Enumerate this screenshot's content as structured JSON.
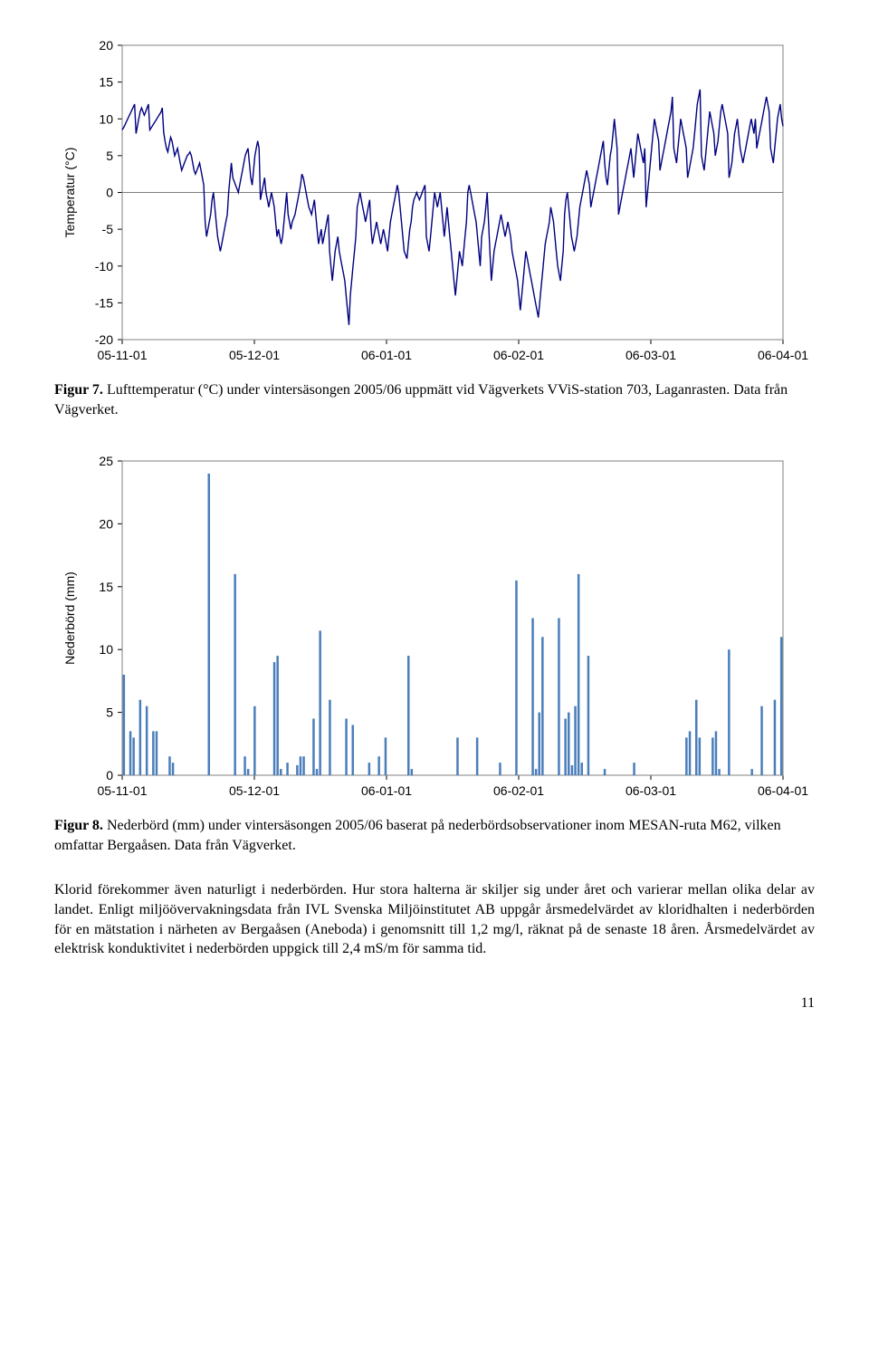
{
  "chart1": {
    "type": "line",
    "ylabel": "Temperatur (°C)",
    "label_fontsize": 14,
    "tick_fontsize": 14,
    "ylim": [
      -20,
      20
    ],
    "ytick_step": 5,
    "xticks": [
      "05-11-01",
      "05-12-01",
      "06-01-01",
      "06-02-01",
      "06-03-01",
      "06-04-01"
    ],
    "series_color": "#000080",
    "zero_line_color": "#808080",
    "frame_color": "#808080",
    "background_color": "#ffffff",
    "line_width": 1.4,
    "data": [
      8.5,
      8.8,
      9.2,
      9.6,
      10.0,
      10.4,
      10.8,
      11.2,
      11.6,
      12.0,
      8.0,
      9.0,
      10.0,
      11.0,
      11.5,
      11.0,
      10.5,
      11.0,
      11.5,
      12.0,
      8.5,
      8.8,
      9.1,
      9.4,
      9.7,
      10.0,
      10.3,
      10.6,
      10.9,
      11.5,
      8.2,
      7.0,
      6.0,
      5.5,
      6.5,
      7.5,
      7.0,
      6.0,
      5.0,
      5.5,
      6.0,
      5.0,
      4.0,
      3.0,
      3.5,
      4.0,
      4.5,
      5.0,
      5.2,
      5.5,
      5.0,
      4.0,
      3.0,
      2.5,
      3.0,
      3.5,
      4.0,
      3.0,
      2.0,
      1.0,
      -4.0,
      -6.0,
      -5.0,
      -4.0,
      -3.0,
      -1.0,
      0.0,
      -2.0,
      -4.0,
      -6.0,
      -7.0,
      -8.0,
      -7.0,
      -6.0,
      -5.0,
      -4.0,
      -3.0,
      0.0,
      2.0,
      4.0,
      2.0,
      1.5,
      1.0,
      0.5,
      0.0,
      1.0,
      2.0,
      3.0,
      4.0,
      5.0,
      5.5,
      6.0,
      4.0,
      2.0,
      1.0,
      3.0,
      5.0,
      6.0,
      7.0,
      6.0,
      -1.0,
      0.0,
      1.0,
      2.0,
      0.0,
      -1.0,
      -2.0,
      -1.0,
      0.0,
      -1.0,
      -2.0,
      -4.0,
      -6.0,
      -5.0,
      -6.0,
      -7.0,
      -6.0,
      -4.0,
      -2.0,
      0.0,
      -3.0,
      -4.0,
      -5.0,
      -4.0,
      -3.5,
      -3.0,
      -2.0,
      -1.0,
      0.0,
      1.0,
      2.5,
      2.0,
      1.0,
      0.0,
      -1.0,
      -2.0,
      -2.5,
      -3.0,
      -2.0,
      -1.0,
      -3.0,
      -5.0,
      -7.0,
      -6.0,
      -5.0,
      -7.0,
      -6.0,
      -5.0,
      -4.0,
      -3.0,
      -8.0,
      -10.0,
      -12.0,
      -10.0,
      -8.0,
      -7.0,
      -6.0,
      -8.0,
      -9.0,
      -10.0,
      -11.0,
      -12.0,
      -14.0,
      -16.0,
      -18.0,
      -14.0,
      -12.0,
      -10.0,
      -8.0,
      -6.0,
      -2.0,
      -1.0,
      0.0,
      -1.0,
      -2.0,
      -3.0,
      -4.0,
      -3.0,
      -2.0,
      -1.0,
      -5.0,
      -7.0,
      -6.0,
      -5.0,
      -4.0,
      -5.0,
      -6.0,
      -7.0,
      -6.0,
      -5.0,
      -6.0,
      -7.0,
      -8.0,
      -6.0,
      -4.0,
      -3.0,
      -2.0,
      -1.0,
      0.0,
      1.0,
      0.0,
      -2.0,
      -4.0,
      -6.0,
      -8.0,
      -8.5,
      -9.0,
      -7.0,
      -5.0,
      -4.0,
      -2.0,
      -1.0,
      -0.5,
      0.0,
      -0.5,
      -1.0,
      -0.5,
      0.0,
      0.5,
      1.0,
      -6.0,
      -7.0,
      -8.0,
      -6.0,
      -4.0,
      -2.0,
      0.0,
      -1.0,
      -2.0,
      -1.0,
      0.0,
      -2.0,
      -4.0,
      -6.0,
      -4.0,
      -2.0,
      -4.0,
      -6.0,
      -8.0,
      -10.0,
      -12.0,
      -14.0,
      -12.0,
      -10.0,
      -8.0,
      -9.0,
      -10.0,
      -8.0,
      -6.0,
      -4.0,
      0.0,
      1.0,
      0.0,
      -1.0,
      -2.0,
      -3.0,
      -4.0,
      -6.0,
      -8.0,
      -10.0,
      -6.0,
      -5.0,
      -4.0,
      -2.0,
      0.0,
      -4.0,
      -8.0,
      -12.0,
      -10.0,
      -8.0,
      -7.0,
      -6.0,
      -5.0,
      -4.0,
      -3.0,
      -4.0,
      -5.0,
      -6.0,
      -5.0,
      -4.0,
      -5.0,
      -6.0,
      -8.0,
      -9.0,
      -10.0,
      -11.0,
      -12.0,
      -14.0,
      -16.0,
      -14.0,
      -12.0,
      -10.0,
      -8.0,
      -9.0,
      -10.0,
      -11.0,
      -12.0,
      -13.0,
      -14.0,
      -15.0,
      -16.0,
      -17.0,
      -15.0,
      -13.0,
      -11.0,
      -9.0,
      -7.0,
      -6.0,
      -5.0,
      -4.0,
      -2.0,
      -3.0,
      -4.0,
      -6.0,
      -8.0,
      -10.0,
      -11.0,
      -12.0,
      -10.0,
      -8.0,
      -3.0,
      -1.0,
      0.0,
      -2.0,
      -4.0,
      -6.0,
      -7.0,
      -8.0,
      -7.0,
      -6.0,
      -4.0,
      -2.0,
      -1.0,
      0.0,
      1.0,
      2.0,
      3.0,
      2.0,
      1.0,
      -2.0,
      -1.0,
      0.0,
      1.0,
      2.0,
      3.0,
      4.0,
      5.0,
      6.0,
      7.0,
      4.0,
      2.0,
      1.0,
      3.0,
      5.0,
      6.0,
      8.0,
      10.0,
      8.0,
      6.0,
      -3.0,
      -2.0,
      -1.0,
      0.0,
      1.0,
      2.0,
      3.0,
      4.0,
      5.0,
      6.0,
      4.0,
      2.0,
      4.0,
      6.0,
      8.0,
      7.0,
      6.0,
      5.0,
      4.0,
      6.0,
      -2.0,
      0.0,
      2.0,
      4.0,
      6.0,
      8.0,
      10.0,
      9.0,
      8.0,
      7.0,
      3.0,
      4.0,
      5.0,
      6.0,
      7.0,
      8.0,
      9.0,
      10.0,
      11.0,
      13.0,
      6.0,
      5.0,
      4.0,
      6.0,
      8.0,
      10.0,
      9.0,
      8.0,
      7.0,
      6.0,
      2.0,
      3.0,
      4.0,
      5.0,
      6.0,
      8.0,
      10.0,
      12.0,
      13.0,
      14.0,
      5.0,
      4.0,
      3.0,
      5.0,
      7.0,
      9.0,
      11.0,
      10.0,
      9.0,
      8.0,
      5.0,
      6.0,
      7.0,
      9.0,
      11.0,
      12.0,
      11.0,
      10.0,
      9.0,
      8.0,
      2.0,
      3.0,
      4.0,
      6.0,
      8.0,
      9.0,
      10.0,
      8.0,
      6.0,
      5.0,
      4.0,
      5.0,
      6.0,
      7.0,
      8.0,
      9.0,
      10.0,
      9.0,
      8.0,
      10.0,
      6.0,
      7.0,
      8.0,
      9.0,
      10.0,
      11.0,
      12.0,
      13.0,
      12.0,
      11.0,
      6.0,
      5.0,
      4.0,
      6.0,
      8.0,
      10.0,
      11.0,
      12.0,
      10.0,
      9.0
    ]
  },
  "caption1": {
    "fignum": "Figur 7.",
    "text": " Lufttemperatur (°C) under vintersäsongen 2005/06 uppmätt vid Vägverkets VViS-station 703, Laganrasten. Data från Vägverket."
  },
  "chart2": {
    "type": "bar",
    "ylabel": "Nederbörd (mm)",
    "label_fontsize": 14,
    "tick_fontsize": 14,
    "ylim": [
      0,
      25
    ],
    "ytick_step": 5,
    "xticks": [
      "05-11-01",
      "05-12-01",
      "06-01-01",
      "06-02-01",
      "06-03-01",
      "06-04-01"
    ],
    "series_color": "#4a7ebb",
    "frame_color": "#808080",
    "background_color": "#ffffff",
    "bar_width": 2.5,
    "data": [
      8,
      0,
      3.5,
      3,
      0,
      6,
      0,
      5.5,
      0,
      3.5,
      3.5,
      0,
      0,
      0,
      1.5,
      1,
      0,
      0,
      0,
      0,
      0,
      0,
      0,
      0,
      0,
      0,
      24,
      0,
      0,
      0,
      0,
      0,
      0,
      0,
      16,
      0,
      0,
      1.5,
      0.5,
      0,
      5.5,
      0,
      0,
      0,
      0,
      0,
      9,
      9.5,
      0.5,
      0,
      1,
      0,
      0,
      0.8,
      1.5,
      1.5,
      0,
      0,
      4.5,
      0.5,
      11.5,
      0,
      0,
      6,
      0,
      0,
      0,
      0,
      4.5,
      0,
      4,
      0,
      0,
      0,
      0,
      1,
      0,
      0,
      1.5,
      0,
      3,
      0,
      0,
      0,
      0,
      0,
      0,
      9.5,
      0.5,
      0,
      0,
      0,
      0,
      0,
      0,
      0,
      0,
      0,
      0,
      0,
      0,
      0,
      3,
      0,
      0,
      0,
      0,
      0,
      3,
      0,
      0,
      0,
      0,
      0,
      0,
      1,
      0,
      0,
      0,
      0,
      15.5,
      0,
      0,
      0,
      0,
      12.5,
      0.5,
      5,
      11,
      0,
      0,
      0,
      0,
      12.5,
      0,
      4.5,
      5,
      0.8,
      5.5,
      16,
      1,
      0,
      9.5,
      0,
      0,
      0,
      0,
      0.5,
      0,
      0,
      0,
      0,
      0,
      0,
      0,
      0,
      1,
      0,
      0,
      0,
      0,
      0,
      0,
      0,
      0,
      0,
      0,
      0,
      0,
      0,
      0,
      0,
      3,
      3.5,
      0,
      6,
      3,
      0,
      0,
      0,
      3,
      3.5,
      0.5,
      0,
      0,
      10,
      0,
      0,
      0,
      0,
      0,
      0,
      0.5,
      0,
      0,
      5.5,
      0,
      0,
      0,
      6,
      0,
      11
    ]
  },
  "caption2": {
    "fignum": "Figur 8.",
    "text": " Nederbörd (mm) under vintersäsongen 2005/06 baserat på nederbördsobservationer inom MESAN-ruta M62, vilken omfattar Bergaåsen. Data från Vägverket."
  },
  "body": {
    "p1": "Klorid förekommer även naturligt i nederbörden. Hur stora halterna är skiljer sig under året och varierar mellan olika delar av landet. Enligt miljöövervakningsdata från IVL Svenska Miljöinstitutet AB uppgår årsmedelvärdet av kloridhalten i nederbörden för en mätstation i närheten av Bergaåsen (Aneboda) i genomsnitt till 1,2 mg/l, räknat på de senaste 18 åren. Årsmedelvärdet av elektrisk konduktivitet i nederbörden uppgick till 2,4 mS/m för samma tid."
  },
  "page_number": "11"
}
